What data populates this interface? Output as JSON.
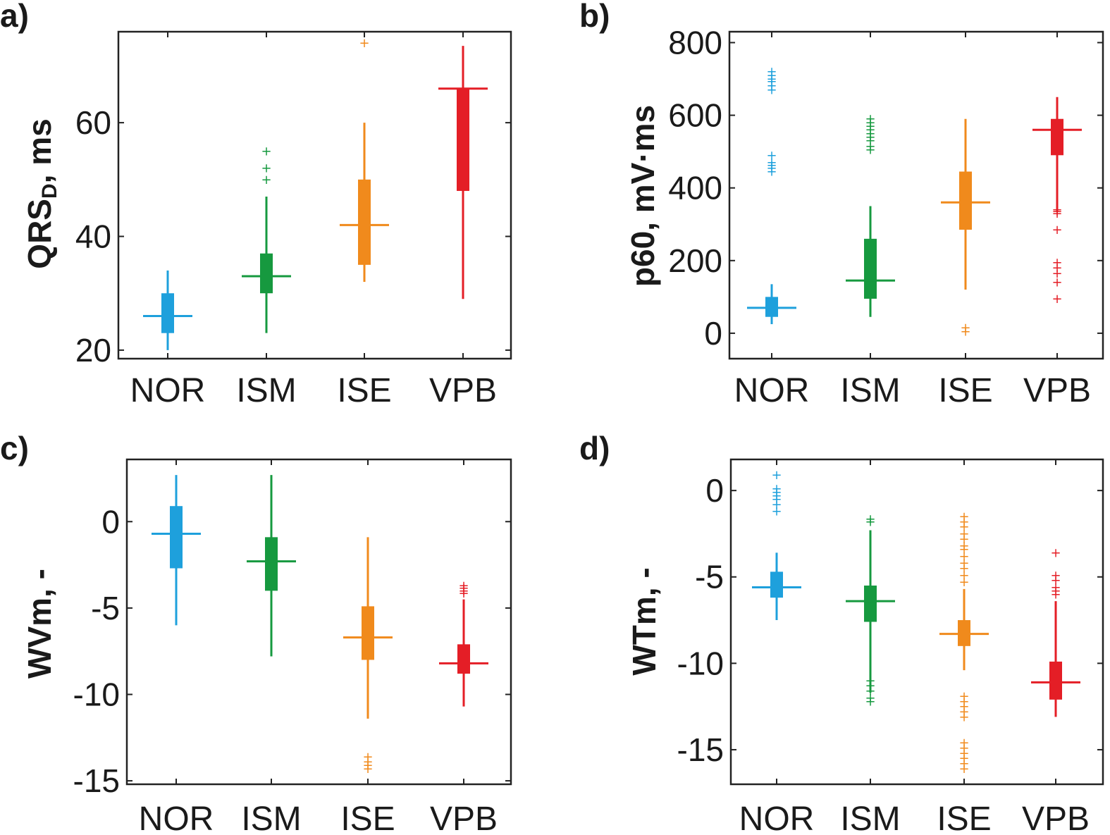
{
  "colors": {
    "NOR": "#1ea0dc",
    "ISM": "#16993f",
    "ISE": "#f08a1c",
    "VPB": "#e41e26",
    "axis": "#222222"
  },
  "chart_data": [
    {
      "type": "box",
      "panel_label": "a)",
      "ylabel": "QRS",
      "ylabel_sub": "D",
      "ylabel_suffix": ", ms",
      "ylim": [
        18.5,
        76
      ],
      "yticks": [
        20,
        40,
        60
      ],
      "yticklabels": [
        "20",
        "40",
        "60"
      ],
      "categories": [
        "NOR",
        "ISM",
        "ISE",
        "VPB"
      ],
      "boxes": [
        {
          "name": "NOR",
          "whislo": 20,
          "q1": 23,
          "med": 26,
          "q3": 30,
          "whishi": 34,
          "fliers": []
        },
        {
          "name": "ISM",
          "whislo": 23,
          "q1": 30,
          "med": 33,
          "q3": 37,
          "whishi": 47,
          "fliers": [
            50,
            52,
            55
          ]
        },
        {
          "name": "ISE",
          "whislo": 32,
          "q1": 35,
          "med": 42,
          "q3": 50,
          "whishi": 60,
          "fliers": [
            74
          ]
        },
        {
          "name": "VPB",
          "whislo": 29,
          "q1": 48,
          "med": 66,
          "q3": 66,
          "whishi": 73.5,
          "fliers": []
        }
      ]
    },
    {
      "type": "box",
      "panel_label": "b)",
      "ylabel": "p60, mV·ms",
      "ylabel_sub": "",
      "ylabel_suffix": "",
      "ylim": [
        -70,
        830
      ],
      "yticks": [
        0,
        200,
        400,
        600,
        800
      ],
      "yticklabels": [
        "0",
        "200",
        "400",
        "600",
        "800"
      ],
      "categories": [
        "NOR",
        "ISM",
        "ISE",
        "VPB"
      ],
      "boxes": [
        {
          "name": "NOR",
          "whislo": 25,
          "q1": 45,
          "med": 70,
          "q3": 100,
          "whishi": 135,
          "fliers": [
            445,
            455,
            462,
            470,
            490,
            670,
            682,
            693,
            700,
            710,
            720
          ]
        },
        {
          "name": "ISM",
          "whislo": 45,
          "q1": 95,
          "med": 145,
          "q3": 260,
          "whishi": 350,
          "fliers": [
            505,
            515,
            530,
            540,
            550,
            560,
            570,
            580,
            590
          ]
        },
        {
          "name": "ISE",
          "whislo": 120,
          "q1": 285,
          "med": 360,
          "q3": 445,
          "whishi": 590,
          "fliers": [
            5,
            15
          ]
        },
        {
          "name": "VPB",
          "whislo": 335,
          "q1": 490,
          "med": 560,
          "q3": 590,
          "whishi": 650,
          "fliers": [
            95,
            140,
            165,
            180,
            195,
            285,
            330,
            335,
            340
          ]
        }
      ]
    },
    {
      "type": "box",
      "panel_label": "c)",
      "ylabel": "WVm, -",
      "ylabel_sub": "",
      "ylabel_suffix": "",
      "ylim": [
        -15.2,
        3.6
      ],
      "yticks": [
        -15,
        -10,
        -5,
        0
      ],
      "yticklabels": [
        "-15",
        "-10",
        "-5",
        "0"
      ],
      "categories": [
        "NOR",
        "ISM",
        "ISE",
        "VPB"
      ],
      "boxes": [
        {
          "name": "NOR",
          "whislo": -6,
          "q1": -2.7,
          "med": -0.7,
          "q3": 0.9,
          "whishi": 2.7,
          "fliers": []
        },
        {
          "name": "ISM",
          "whislo": -7.8,
          "q1": -4,
          "med": -2.3,
          "q3": -0.9,
          "whishi": 2.7,
          "fliers": []
        },
        {
          "name": "ISE",
          "whislo": -11.4,
          "q1": -8,
          "med": -6.7,
          "q3": -4.9,
          "whishi": -0.9,
          "fliers": [
            -13.6,
            -13.9,
            -14.1,
            -14.3
          ]
        },
        {
          "name": "VPB",
          "whislo": -10.7,
          "q1": -8.8,
          "med": -8.2,
          "q3": -7.1,
          "whishi": -4.5,
          "fliers": [
            -3.7,
            -3.85,
            -4,
            -4.15
          ]
        }
      ]
    },
    {
      "type": "box",
      "panel_label": "d)",
      "ylabel": "WTm, -",
      "ylabel_sub": "",
      "ylabel_suffix": "",
      "ylim": [
        -17,
        1.8
      ],
      "yticks": [
        -15,
        -10,
        -5,
        0
      ],
      "yticklabels": [
        "-15",
        "-10",
        "-5",
        "0"
      ],
      "categories": [
        "NOR",
        "ISM",
        "ISE",
        "VPB"
      ],
      "boxes": [
        {
          "name": "NOR",
          "whislo": -7.5,
          "q1": -6.2,
          "med": -5.6,
          "q3": -4.7,
          "whishi": -3.6,
          "fliers": [
            -1.2,
            -0.8,
            -0.5,
            -0.3,
            -0.1,
            0.1,
            0.9
          ]
        },
        {
          "name": "ISM",
          "whislo": -11.7,
          "q1": -7.6,
          "med": -6.4,
          "q3": -5.5,
          "whishi": -2.3,
          "fliers": [
            -12.2,
            -12,
            -11.6,
            -11.3,
            -11,
            -1.8,
            -1.65
          ]
        },
        {
          "name": "ISE",
          "whislo": -10.4,
          "q1": -9,
          "med": -8.3,
          "q3": -7.5,
          "whishi": -5.7,
          "fliers": [
            -16.1,
            -15.8,
            -15.5,
            -15.2,
            -14.9,
            -14.6,
            -13.1,
            -12.8,
            -12.5,
            -12.2,
            -11.9,
            -5.3,
            -4.9,
            -4.5,
            -4.2,
            -3.8,
            -3.4,
            -3.2,
            -2.8,
            -2.5,
            -2.1,
            -1.8,
            -1.5
          ]
        },
        {
          "name": "VPB",
          "whislo": -13.1,
          "q1": -12.1,
          "med": -11.1,
          "q3": -9.9,
          "whishi": -6.4,
          "fliers": [
            -6,
            -5.8,
            -5.6,
            -5.2,
            -4.9,
            -3.6
          ]
        }
      ]
    }
  ]
}
